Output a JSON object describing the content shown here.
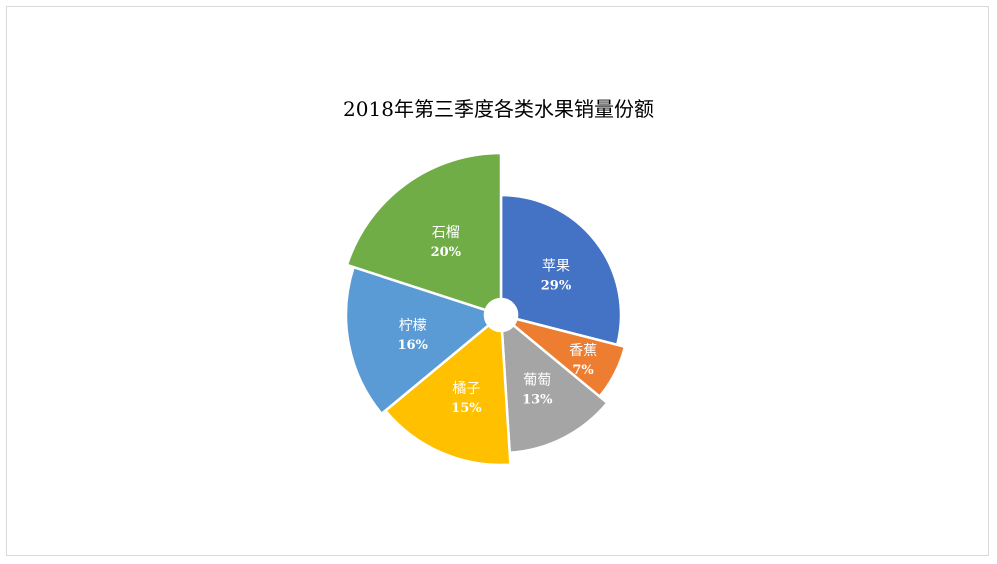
{
  "chart_data": {
    "type": "pie",
    "title": "2018年第三季度各类水果销量份额",
    "categories": [
      "苹果",
      "香蕉",
      "葡萄",
      "橘子",
      "柠檬",
      "石榴"
    ],
    "values": [
      29,
      7,
      13,
      15,
      16,
      20
    ],
    "value_labels": [
      "29%",
      "7%",
      "13%",
      "15%",
      "16%",
      "20%"
    ],
    "colors": [
      "#4472c4",
      "#ed7d31",
      "#a5a5a5",
      "#ffc000",
      "#5b9bd5",
      "#70ad47"
    ],
    "legend": "none",
    "style": "doughnut-exploded"
  }
}
